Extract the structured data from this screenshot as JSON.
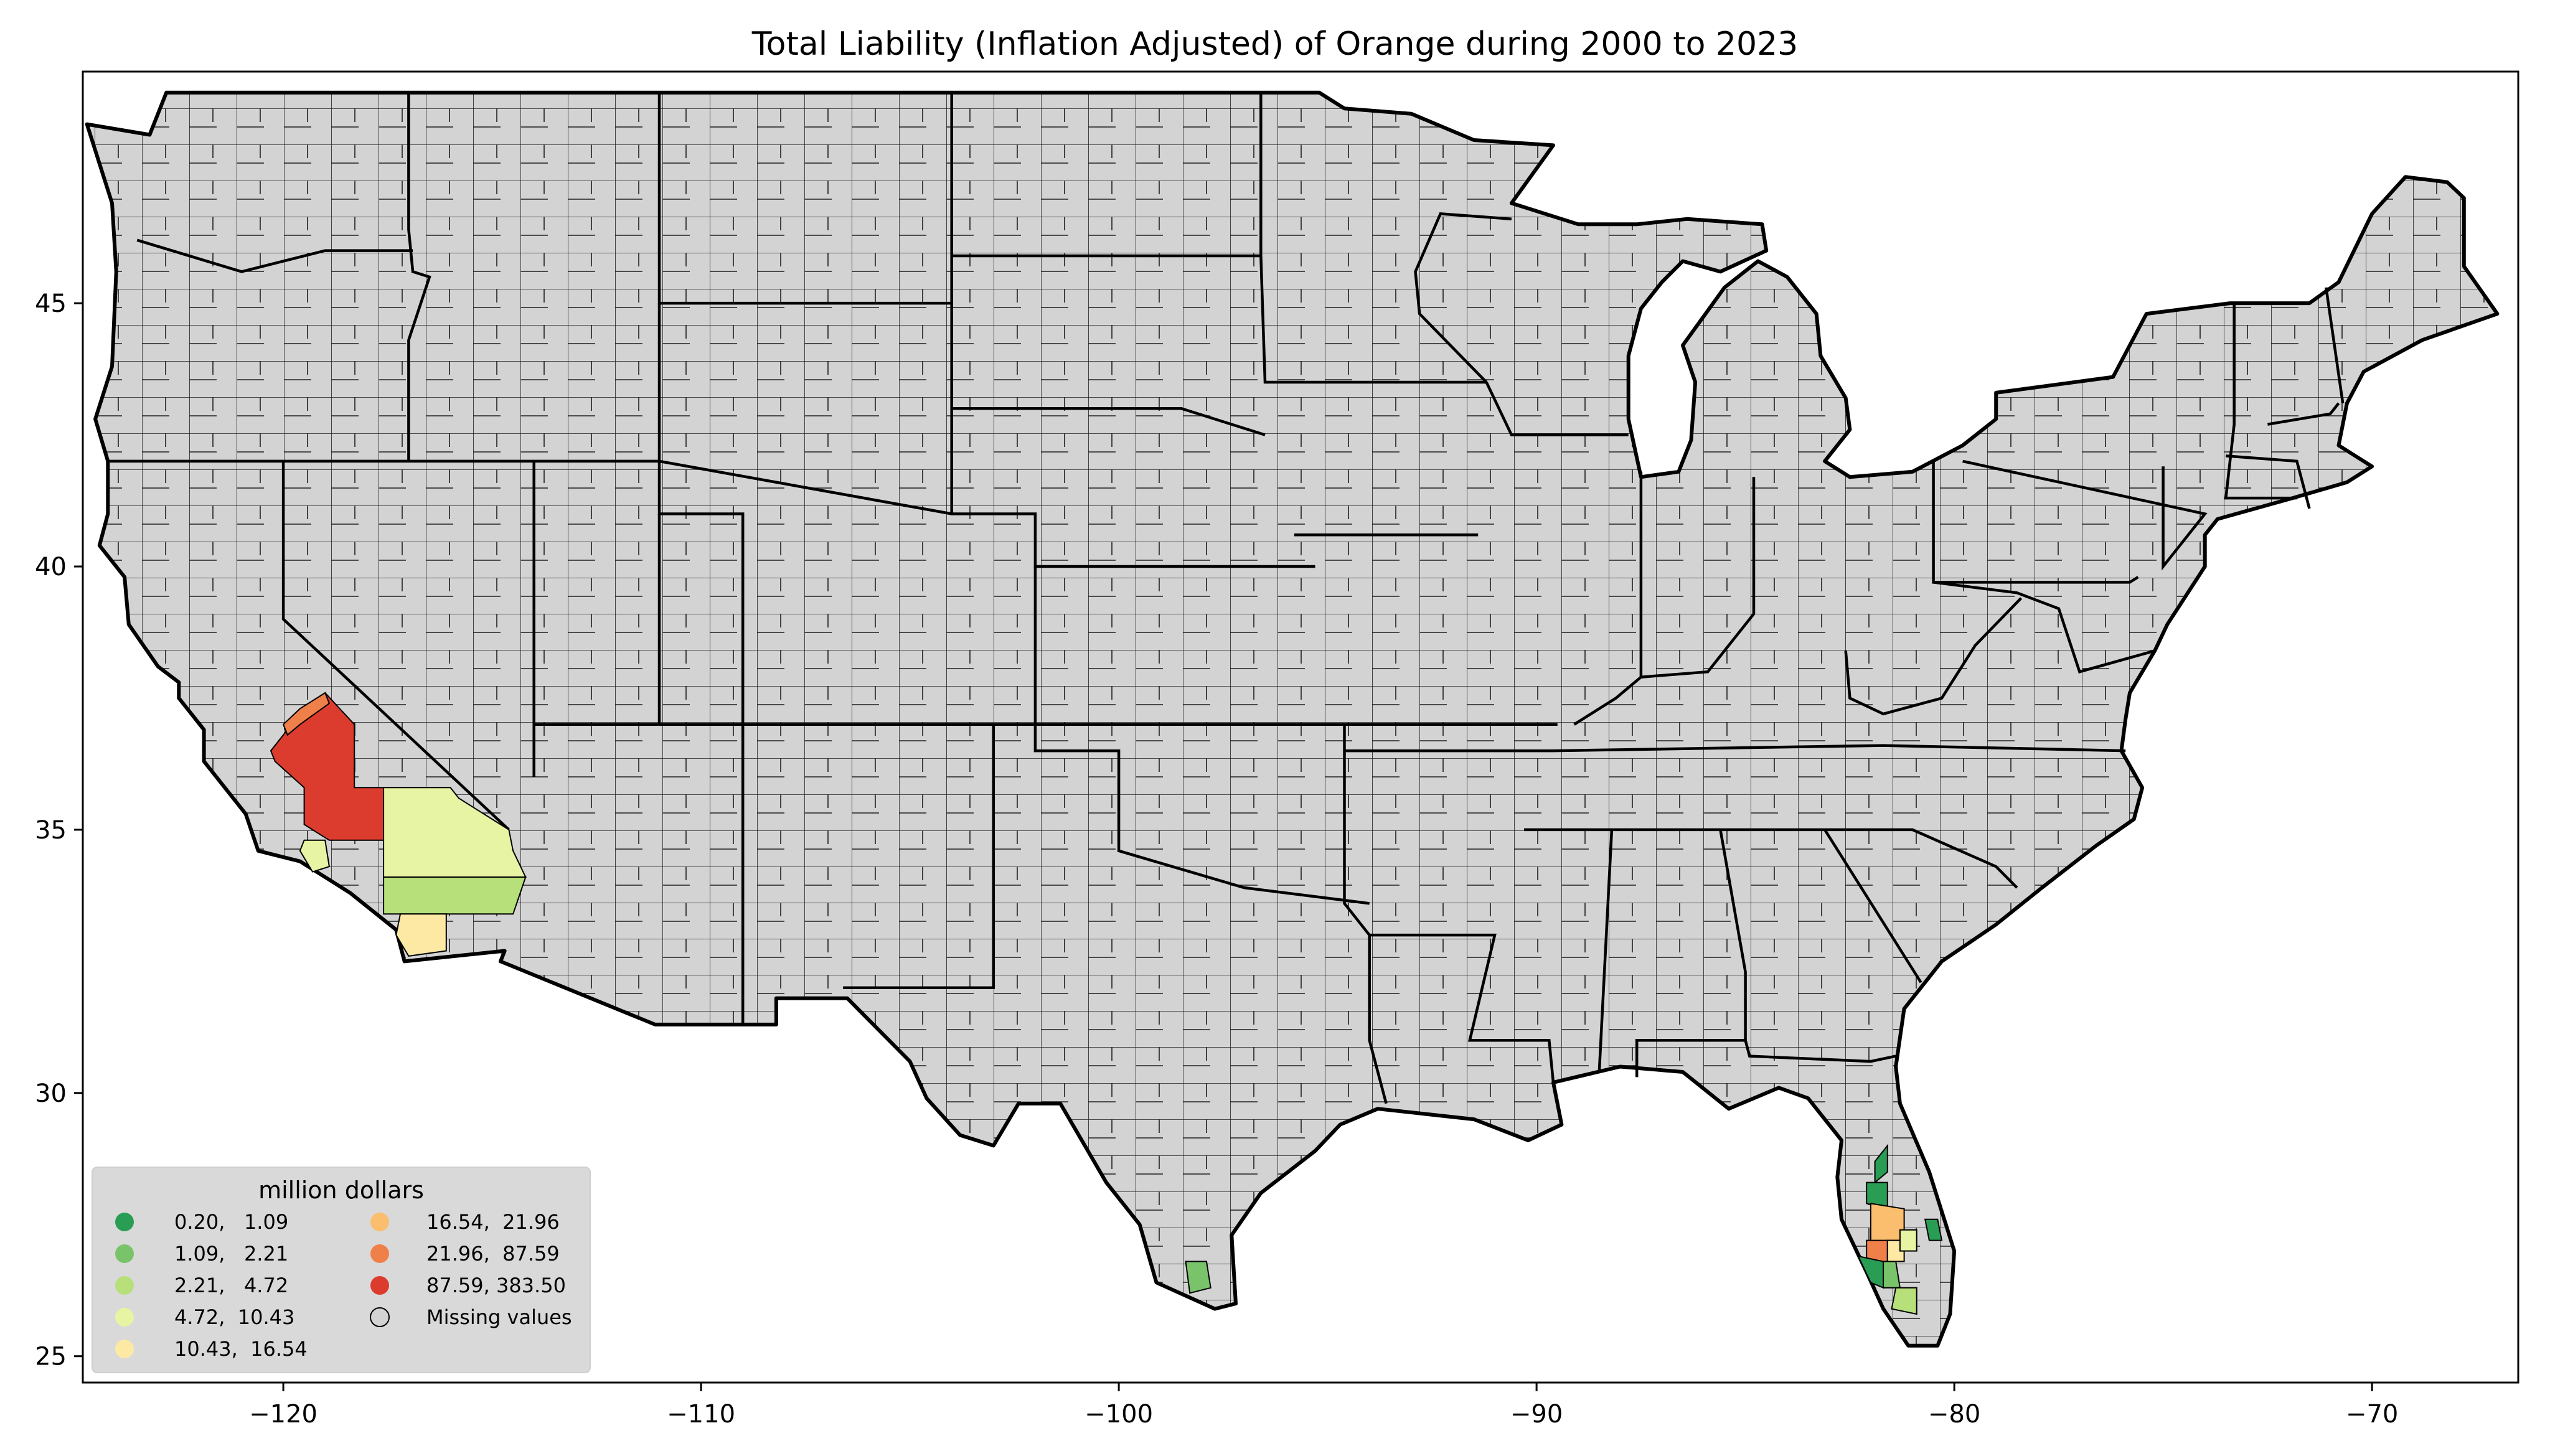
{
  "title": "Total Liability  (Inflation Adjusted) of Orange during 2000 to 2023",
  "map": {
    "type": "choropleth",
    "projection": "plate-carree",
    "x_range": [
      -124.8,
      -66.5
    ],
    "y_range": [
      24.5,
      49.4
    ],
    "x_ticks": [
      -120,
      -110,
      -100,
      -90,
      -80,
      -70
    ],
    "x_tick_labels": [
      "−120",
      "−110",
      "−100",
      "−90",
      "−80",
      "−70"
    ],
    "y_ticks": [
      25,
      30,
      35,
      40,
      45
    ],
    "y_tick_labels": [
      "25",
      "30",
      "35",
      "40",
      "45"
    ],
    "missing_color": "#d3d3d3"
  },
  "legend": {
    "title": "million dollars",
    "placement": "lower-left",
    "items": [
      {
        "label": "0.20,   1.09",
        "color": "#2a9d55"
      },
      {
        "label": "1.09,   2.21",
        "color": "#79c46a"
      },
      {
        "label": "2.21,   4.72",
        "color": "#b7e07a"
      },
      {
        "label": "4.72,  10.43",
        "color": "#e7f4a3"
      },
      {
        "label": "10.43,  16.54",
        "color": "#fde9a4"
      },
      {
        "label": "16.54,  21.96",
        "color": "#fbbd6e"
      },
      {
        "label": "21.96,  87.59",
        "color": "#f0804a"
      },
      {
        "label": "87.59, 383.50",
        "color": "#dc3c2e"
      },
      {
        "label": "Missing values",
        "color": "#d3d3d3"
      }
    ]
  },
  "chart_data": {
    "type": "choropleth",
    "title": "Total Liability  (Inflation Adjusted) of Orange during 2000 to 2023",
    "value_unit": "million dollars",
    "bins": [
      [
        0.2,
        1.09
      ],
      [
        1.09,
        2.21
      ],
      [
        2.21,
        4.72
      ],
      [
        4.72,
        10.43
      ],
      [
        10.43,
        16.54
      ],
      [
        16.54,
        21.96
      ],
      [
        21.96,
        87.59
      ],
      [
        87.59,
        383.5
      ]
    ],
    "regions": [
      {
        "bin": 7,
        "color": "#dc3c2e",
        "poly": [
          [
            -119.6,
            37.0
          ],
          [
            -119.0,
            37.6
          ],
          [
            -118.3,
            37.0
          ],
          [
            -118.3,
            35.8
          ],
          [
            -117.6,
            35.8
          ],
          [
            -117.6,
            34.8
          ],
          [
            -118.9,
            34.8
          ],
          [
            -119.5,
            35.1
          ],
          [
            -119.5,
            35.8
          ],
          [
            -120.2,
            36.3
          ],
          [
            -120.3,
            36.5
          ],
          [
            -119.9,
            36.9
          ]
        ]
      },
      {
        "bin": 6,
        "color": "#f0804a",
        "poly": [
          [
            -120.0,
            37.0
          ],
          [
            -119.6,
            37.3
          ],
          [
            -119.0,
            37.6
          ],
          [
            -118.9,
            37.4
          ],
          [
            -119.6,
            37.0
          ],
          [
            -119.9,
            36.8
          ]
        ]
      },
      {
        "bin": 3,
        "color": "#e7f4a3",
        "poly": [
          [
            -117.6,
            35.8
          ],
          [
            -116.0,
            35.8
          ],
          [
            -115.8,
            35.6
          ],
          [
            -114.6,
            35.0
          ],
          [
            -114.5,
            34.6
          ],
          [
            -114.2,
            34.1
          ],
          [
            -117.6,
            34.1
          ]
        ]
      },
      {
        "bin": 2,
        "color": "#b7e07a",
        "poly": [
          [
            -117.6,
            34.1
          ],
          [
            -114.2,
            34.1
          ],
          [
            -114.5,
            33.4
          ],
          [
            -117.6,
            33.4
          ]
        ]
      },
      {
        "bin": 4,
        "color": "#fde9a4",
        "poly": [
          [
            -117.2,
            33.4
          ],
          [
            -116.1,
            33.4
          ],
          [
            -116.1,
            32.7
          ],
          [
            -117.0,
            32.6
          ],
          [
            -117.3,
            33.0
          ]
        ]
      },
      {
        "bin": 3,
        "color": "#e7f4a3",
        "poly": [
          [
            -119.5,
            34.8
          ],
          [
            -119.0,
            34.8
          ],
          [
            -118.9,
            34.3
          ],
          [
            -119.3,
            34.2
          ],
          [
            -119.6,
            34.6
          ]
        ]
      },
      {
        "bin": 1,
        "color": "#79c46a",
        "poly": [
          [
            -98.4,
            26.8
          ],
          [
            -97.9,
            26.8
          ],
          [
            -97.8,
            26.3
          ],
          [
            -98.3,
            26.2
          ]
        ]
      },
      {
        "bin": 0,
        "color": "#2a9d55",
        "poly": [
          [
            -81.9,
            28.7
          ],
          [
            -81.6,
            29.0
          ],
          [
            -81.6,
            28.5
          ],
          [
            -81.9,
            28.3
          ]
        ]
      },
      {
        "bin": 0,
        "color": "#2a9d55",
        "poly": [
          [
            -82.1,
            28.3
          ],
          [
            -81.6,
            28.3
          ],
          [
            -81.6,
            27.8
          ],
          [
            -82.1,
            27.9
          ]
        ]
      },
      {
        "bin": 5,
        "color": "#fbbd6e",
        "poly": [
          [
            -82.0,
            27.9
          ],
          [
            -81.2,
            27.8
          ],
          [
            -81.2,
            27.2
          ],
          [
            -81.6,
            27.2
          ],
          [
            -81.6,
            26.9
          ],
          [
            -82.0,
            26.9
          ]
        ]
      },
      {
        "bin": 6,
        "color": "#f0804a",
        "poly": [
          [
            -82.1,
            27.2
          ],
          [
            -81.6,
            27.2
          ],
          [
            -81.6,
            26.8
          ],
          [
            -82.1,
            26.8
          ]
        ]
      },
      {
        "bin": 4,
        "color": "#fde9a4",
        "poly": [
          [
            -81.6,
            27.2
          ],
          [
            -81.2,
            27.2
          ],
          [
            -81.2,
            26.8
          ],
          [
            -81.6,
            26.8
          ]
        ]
      },
      {
        "bin": 3,
        "color": "#e7f4a3",
        "poly": [
          [
            -81.3,
            27.4
          ],
          [
            -80.9,
            27.4
          ],
          [
            -80.9,
            27.0
          ],
          [
            -81.3,
            27.0
          ]
        ]
      },
      {
        "bin": 0,
        "color": "#2a9d55",
        "poly": [
          [
            -80.7,
            27.6
          ],
          [
            -80.4,
            27.6
          ],
          [
            -80.3,
            27.2
          ],
          [
            -80.6,
            27.2
          ]
        ]
      },
      {
        "bin": 0,
        "color": "#2a9d55",
        "poly": [
          [
            -82.3,
            26.9
          ],
          [
            -81.7,
            26.8
          ],
          [
            -81.7,
            26.3
          ],
          [
            -82.0,
            26.4
          ]
        ]
      },
      {
        "bin": 1,
        "color": "#79c46a",
        "poly": [
          [
            -81.7,
            26.8
          ],
          [
            -81.4,
            26.8
          ],
          [
            -81.3,
            26.3
          ],
          [
            -81.7,
            26.3
          ]
        ]
      },
      {
        "bin": 2,
        "color": "#b7e07a",
        "poly": [
          [
            -81.4,
            26.3
          ],
          [
            -80.9,
            26.3
          ],
          [
            -80.9,
            25.8
          ],
          [
            -81.5,
            25.9
          ]
        ]
      }
    ]
  }
}
